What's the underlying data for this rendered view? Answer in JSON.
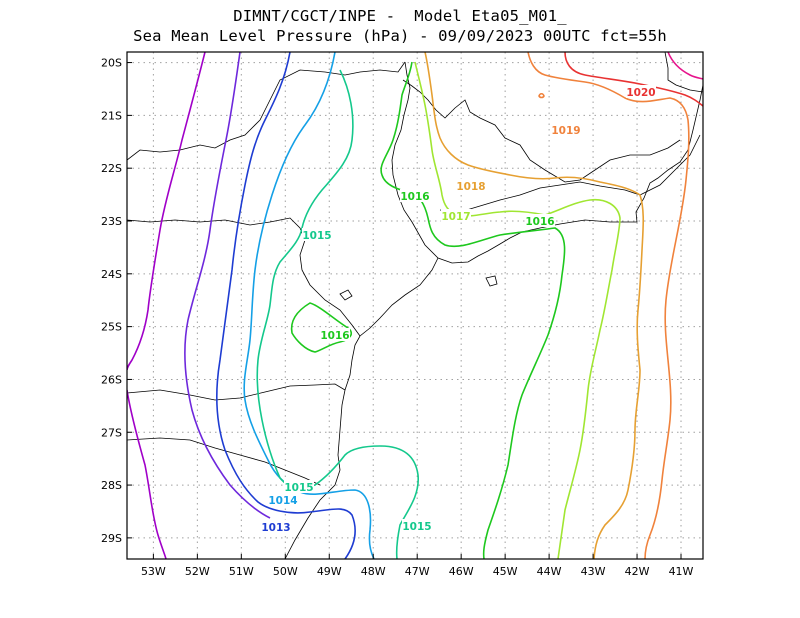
{
  "title": {
    "line1": "DIMNT/CGCT/INPE -  Model Eta05_M01_",
    "line2": "Sea Mean Level Pressure (hPa) - 09/09/2023 00UTC fct=55h"
  },
  "axes": {
    "lon_ticks": [
      "53W",
      "52W",
      "51W",
      "50W",
      "49W",
      "48W",
      "47W",
      "46W",
      "45W",
      "44W",
      "43W",
      "42W",
      "41W"
    ],
    "lat_ticks": [
      "20S",
      "21S",
      "22S",
      "23S",
      "24S",
      "25S",
      "26S",
      "27S",
      "28S",
      "29S"
    ],
    "lon_range": [
      -53.6,
      -40.5
    ],
    "lat_range": [
      -29.4,
      -19.8
    ],
    "grid": "dotted"
  },
  "contour_labels": [
    {
      "text": "1020",
      "color": "#e83232"
    },
    {
      "text": "1019",
      "color": "#f0823c"
    },
    {
      "text": "1018",
      "color": "#e6a032"
    },
    {
      "text": "1017",
      "color": "#a0e632"
    },
    {
      "text": "1016",
      "color": "#1ec81e"
    },
    {
      "text": "1016",
      "color": "#1ec81e"
    },
    {
      "text": "1016",
      "color": "#1ec81e"
    },
    {
      "text": "1015",
      "color": "#14c88c"
    },
    {
      "text": "1015",
      "color": "#14c88c"
    },
    {
      "text": "1015",
      "color": "#14c88c"
    },
    {
      "text": "1014",
      "color": "#14a0e6"
    },
    {
      "text": "1013",
      "color": "#1e3cd2"
    }
  ]
}
